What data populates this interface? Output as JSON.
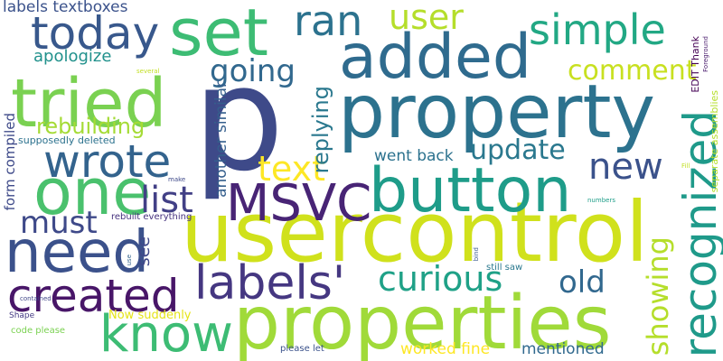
{
  "words": [
    {
      "text": "p",
      "color": "#3e4a89"
    },
    {
      "text": "usercontrol",
      "color": "#d0e11c"
    },
    {
      "text": "properties",
      "color": "#a0da39"
    },
    {
      "text": "property",
      "color": "#2c728e"
    },
    {
      "text": "added",
      "color": "#2f6b8e"
    },
    {
      "text": "button",
      "color": "#1e9c89"
    },
    {
      "text": "tried",
      "color": "#7ad151"
    },
    {
      "text": "set",
      "color": "#3dbc74"
    },
    {
      "text": "one",
      "color": "#4ac16d"
    },
    {
      "text": "need",
      "color": "#3b518b"
    },
    {
      "text": "know",
      "color": "#3dbc74"
    },
    {
      "text": "labels'",
      "color": "#453781"
    },
    {
      "text": "created",
      "color": "#481668"
    },
    {
      "text": "MSVC",
      "color": "#482475"
    },
    {
      "text": "recognized",
      "color": "#1f9a8a"
    },
    {
      "text": "wrote",
      "color": "#33638d"
    },
    {
      "text": "today",
      "color": "#38588c"
    },
    {
      "text": "ran",
      "color": "#2c728e"
    },
    {
      "text": "simple",
      "color": "#22a884"
    },
    {
      "text": "user",
      "color": "#b5de2b"
    },
    {
      "text": "new",
      "color": "#3b528b"
    },
    {
      "text": "list",
      "color": "#424086"
    },
    {
      "text": "text",
      "color": "#fde725"
    },
    {
      "text": "curious",
      "color": "#1fa187"
    },
    {
      "text": "old",
      "color": "#31688e"
    },
    {
      "text": "must",
      "color": "#3e4989"
    },
    {
      "text": "update",
      "color": "#2a788e"
    },
    {
      "text": "showing",
      "color": "#b5de2b"
    },
    {
      "text": "going",
      "color": "#31688e"
    },
    {
      "text": "comment",
      "color": "#c8e020"
    },
    {
      "text": "replying",
      "color": "#2a788e"
    },
    {
      "text": "rebuilding",
      "color": "#a5db36"
    },
    {
      "text": "another similar",
      "color": "#355f8d"
    },
    {
      "text": "see",
      "color": "#3f4889"
    },
    {
      "text": "apologize",
      "color": "#21918c"
    },
    {
      "text": "labels textboxes",
      "color": "#3b528b"
    },
    {
      "text": "form compiled",
      "color": "#3e4a89"
    },
    {
      "text": "went back",
      "color": "#2c728e"
    },
    {
      "text": "supposedly deleted",
      "color": "#2c728e"
    },
    {
      "text": "EDIT Thank",
      "color": "#440154"
    },
    {
      "text": "Now suddenly",
      "color": "#e5e419"
    },
    {
      "text": "worked fine",
      "color": "#fde725"
    },
    {
      "text": "mentioned",
      "color": "#30698e"
    },
    {
      "text": "separate assemblies",
      "color": "#b5de2b"
    },
    {
      "text": "rebuilt everything",
      "color": "#46327e"
    },
    {
      "text": "code please",
      "color": "#7ad151"
    },
    {
      "text": "still saw",
      "color": "#2a788e"
    },
    {
      "text": "please let",
      "color": "#3b528b"
    },
    {
      "text": "Shape",
      "color": "#443a83"
    },
    {
      "text": "contained",
      "color": "#404688"
    },
    {
      "text": "several",
      "color": "#c2df23"
    },
    {
      "text": "Foreground",
      "color": "#481a6c"
    },
    {
      "text": "make",
      "color": "#3e4989"
    },
    {
      "text": "use",
      "color": "#33638d"
    },
    {
      "text": "bind",
      "color": "#38598c"
    },
    {
      "text": "numbers",
      "color": "#1f9e89"
    },
    {
      "text": "Fill",
      "color": "#c2df23"
    }
  ]
}
